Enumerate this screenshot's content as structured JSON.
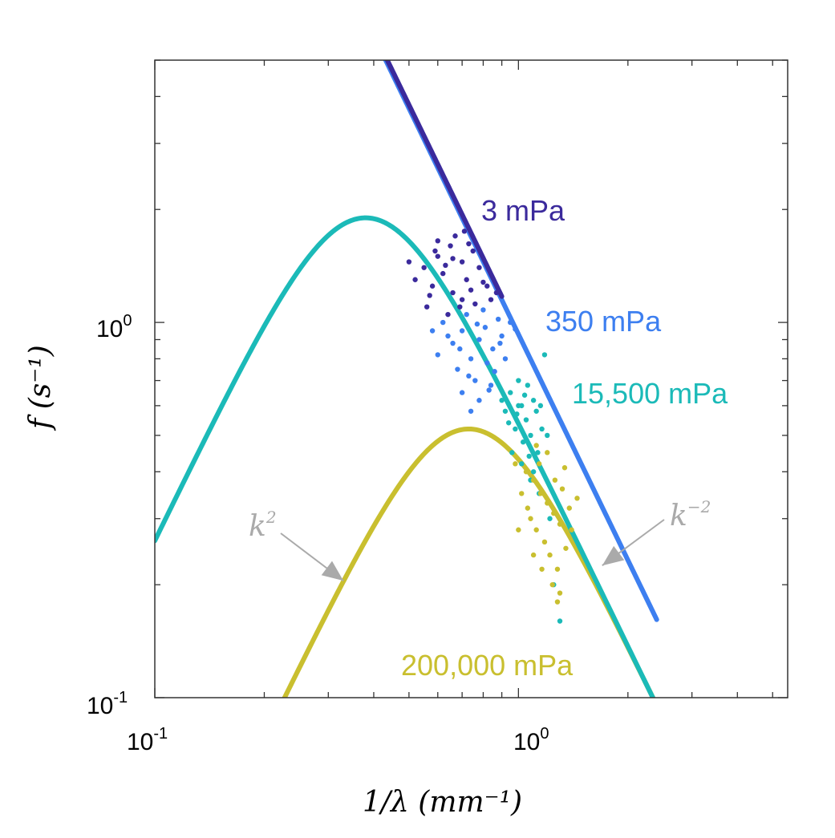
{
  "chart_data": {
    "type": "line+scatter",
    "scale": "log-log",
    "xlabel": "1/λ  (mm⁻¹)",
    "ylabel": "f (s⁻¹)",
    "xlim": [
      0.1,
      5.5
    ],
    "ylim": [
      0.1,
      5
    ],
    "x_ticks": [
      {
        "base": "10",
        "exp": "-1",
        "value": 0.1
      },
      {
        "base": "10",
        "exp": "0",
        "value": 1
      }
    ],
    "y_ticks": [
      {
        "base": "10",
        "exp": "-1",
        "value": 0.1
      },
      {
        "base": "10",
        "exp": "0",
        "value": 1
      }
    ],
    "series": [
      {
        "name": "3 mPa",
        "color": "#3b2a9c",
        "line": {
          "kind": "power",
          "coef": 0.95,
          "exp": -2,
          "x_from": 0.34,
          "x_to": 0.9
        },
        "scatter_center": [
          0.68,
          1.28
        ],
        "scatter_points": [
          [
            0.55,
            1.4
          ],
          [
            0.6,
            1.5
          ],
          [
            0.65,
            1.6
          ],
          [
            0.7,
            1.45
          ],
          [
            0.75,
            1.55
          ],
          [
            0.58,
            1.25
          ],
          [
            0.62,
            1.35
          ],
          [
            0.66,
            1.2
          ],
          [
            0.72,
            1.3
          ],
          [
            0.78,
            1.4
          ],
          [
            0.52,
            1.3
          ],
          [
            0.57,
            1.18
          ],
          [
            0.63,
            1.42
          ],
          [
            0.69,
            1.1
          ],
          [
            0.74,
            1.22
          ],
          [
            0.8,
            1.28
          ],
          [
            0.6,
            1.65
          ],
          [
            0.67,
            1.7
          ],
          [
            0.73,
            1.62
          ],
          [
            0.84,
            1.15
          ],
          [
            0.56,
            1.1
          ],
          [
            0.64,
            1.05
          ],
          [
            0.7,
            1.15
          ],
          [
            0.76,
            1.12
          ],
          [
            0.82,
            1.25
          ],
          [
            0.59,
            1.55
          ],
          [
            0.71,
            1.75
          ],
          [
            0.87,
            1.2
          ],
          [
            0.5,
            1.45
          ],
          [
            0.66,
            1.48
          ]
        ]
      },
      {
        "name": "350 mPa",
        "color": "#3d7ff0",
        "line": {
          "kind": "power",
          "coef": 0.93,
          "exp": -2,
          "x_from": 0.34,
          "x_to": 2.4
        },
        "scatter_center": [
          0.78,
          0.85
        ],
        "scatter_points": [
          [
            0.62,
            1.0
          ],
          [
            0.7,
            0.95
          ],
          [
            0.78,
            0.9
          ],
          [
            0.85,
            0.85
          ],
          [
            0.66,
            0.88
          ],
          [
            0.74,
            0.8
          ],
          [
            0.82,
            0.78
          ],
          [
            0.9,
            0.92
          ],
          [
            0.6,
            0.82
          ],
          [
            0.68,
            0.75
          ],
          [
            0.76,
            0.7
          ],
          [
            0.84,
            0.68
          ],
          [
            0.72,
            1.05
          ],
          [
            0.8,
            1.08
          ],
          [
            0.88,
            1.02
          ],
          [
            0.64,
            0.92
          ],
          [
            0.7,
            0.65
          ],
          [
            0.78,
            0.62
          ],
          [
            0.86,
            0.74
          ],
          [
            0.92,
            0.8
          ],
          [
            0.74,
            0.58
          ],
          [
            0.81,
            0.97
          ],
          [
            0.95,
            1.0
          ],
          [
            0.58,
            0.95
          ],
          [
            0.69,
            0.85
          ],
          [
            0.77,
            0.99
          ],
          [
            0.83,
            0.66
          ],
          [
            0.89,
            0.88
          ],
          [
            0.98,
            0.96
          ],
          [
            0.73,
            0.72
          ]
        ]
      },
      {
        "name": "15,500 mPa",
        "color": "#1bbab8",
        "line": {
          "kind": "peak",
          "x_peak": 0.38,
          "y_peak": 1.9,
          "x_from": 0.1,
          "x_to": 2.4
        },
        "scatter_center": [
          1.05,
          0.55
        ],
        "scatter_points": [
          [
            0.95,
            0.65
          ],
          [
            1.0,
            0.6
          ],
          [
            1.05,
            0.55
          ],
          [
            1.1,
            0.62
          ],
          [
            0.98,
            0.52
          ],
          [
            1.03,
            0.48
          ],
          [
            1.08,
            0.5
          ],
          [
            1.13,
            0.45
          ],
          [
            0.92,
            0.58
          ],
          [
            1.0,
            0.7
          ],
          [
            1.06,
            0.68
          ],
          [
            1.12,
            0.58
          ],
          [
            0.96,
            0.45
          ],
          [
            1.02,
            0.42
          ],
          [
            1.1,
            0.4
          ],
          [
            1.16,
            0.52
          ],
          [
            0.9,
            0.62
          ],
          [
            1.04,
            0.64
          ],
          [
            1.15,
            0.6
          ],
          [
            0.99,
            0.57
          ],
          [
            1.07,
            0.44
          ],
          [
            1.2,
            0.5
          ],
          [
            1.18,
            0.82
          ],
          [
            1.25,
            0.2
          ],
          [
            1.3,
            0.16
          ],
          [
            1.22,
            0.3
          ],
          [
            1.14,
            0.35
          ],
          [
            1.08,
            0.38
          ],
          [
            1.02,
            0.6
          ],
          [
            0.94,
            0.54
          ]
        ]
      },
      {
        "name": "200,000 mPa",
        "color": "#c9bf2f",
        "line": {
          "kind": "peak",
          "x_peak": 0.73,
          "y_peak": 0.52,
          "x_from": 0.21,
          "x_to": 2.4
        },
        "scatter_center": [
          1.2,
          0.32
        ],
        "scatter_points": [
          [
            1.05,
            0.4
          ],
          [
            1.1,
            0.38
          ],
          [
            1.15,
            0.35
          ],
          [
            1.2,
            0.33
          ],
          [
            1.25,
            0.31
          ],
          [
            1.3,
            0.29
          ],
          [
            1.08,
            0.3
          ],
          [
            1.12,
            0.28
          ],
          [
            1.18,
            0.26
          ],
          [
            1.22,
            0.24
          ],
          [
            1.28,
            0.22
          ],
          [
            1.35,
            0.25
          ],
          [
            1.02,
            0.35
          ],
          [
            1.06,
            0.32
          ],
          [
            1.14,
            0.42
          ],
          [
            1.2,
            0.45
          ],
          [
            1.26,
            0.38
          ],
          [
            1.32,
            0.36
          ],
          [
            1.38,
            0.32
          ],
          [
            1.1,
            0.24
          ],
          [
            1.16,
            0.22
          ],
          [
            1.24,
            0.2
          ],
          [
            1.3,
            0.19
          ],
          [
            1.4,
            0.28
          ],
          [
            1.45,
            0.34
          ],
          [
            0.98,
            0.42
          ],
          [
            1.0,
            0.28
          ],
          [
            1.34,
            0.41
          ],
          [
            1.12,
            0.47
          ],
          [
            1.28,
            0.18
          ]
        ]
      }
    ],
    "annotations": [
      {
        "label_base": "k",
        "label_exp": "2",
        "points_to": [
          0.33,
          0.205
        ]
      },
      {
        "label_base": "k",
        "label_exp": "−2",
        "points_to": [
          1.7,
          0.225
        ]
      }
    ]
  }
}
